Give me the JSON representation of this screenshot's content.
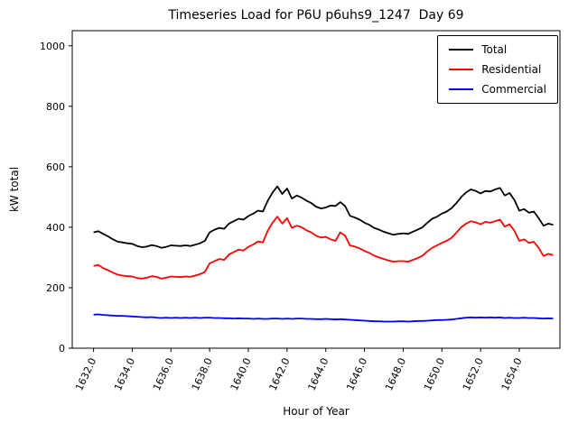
{
  "chart_data": {
    "type": "line",
    "title": "Timeseries Load for P6U p6uhs9_1247  Day 69",
    "xlabel": "Hour of Year",
    "ylabel": "kW total",
    "xlim": [
      1630.9,
      1656.1
    ],
    "ylim": [
      0,
      1050
    ],
    "yticks": [
      0,
      200,
      400,
      600,
      800,
      1000
    ],
    "xticks": [
      1632.0,
      1634.0,
      1636.0,
      1638.0,
      1640.0,
      1642.0,
      1644.0,
      1646.0,
      1648.0,
      1650.0,
      1652.0,
      1654.0
    ],
    "grid": false,
    "legend_position": "upper right",
    "x": [
      1632,
      1632.25,
      1632.5,
      1632.75,
      1633,
      1633.25,
      1633.5,
      1633.75,
      1634,
      1634.25,
      1634.5,
      1634.75,
      1635,
      1635.25,
      1635.5,
      1635.75,
      1636,
      1636.25,
      1636.5,
      1636.75,
      1637,
      1637.25,
      1637.5,
      1637.75,
      1638,
      1638.25,
      1638.5,
      1638.75,
      1639,
      1639.25,
      1639.5,
      1639.75,
      1640,
      1640.25,
      1640.5,
      1640.75,
      1641,
      1641.25,
      1641.5,
      1641.75,
      1642,
      1642.25,
      1642.5,
      1642.75,
      1643,
      1643.25,
      1643.5,
      1643.75,
      1644,
      1644.25,
      1644.5,
      1644.75,
      1645,
      1645.25,
      1645.5,
      1645.75,
      1646,
      1646.25,
      1646.5,
      1646.75,
      1647,
      1647.25,
      1647.5,
      1647.75,
      1648,
      1648.25,
      1648.5,
      1648.75,
      1649,
      1649.25,
      1649.5,
      1649.75,
      1650,
      1650.25,
      1650.5,
      1650.75,
      1651,
      1651.25,
      1651.5,
      1651.75,
      1652,
      1652.25,
      1652.5,
      1652.75,
      1653,
      1653.25,
      1653.5,
      1653.75,
      1654,
      1654.25,
      1654.5,
      1654.75,
      1655,
      1655.25,
      1655.5,
      1655.75
    ],
    "series": [
      {
        "name": "Total",
        "color": "#000000",
        "values": [
          383,
          387,
          378,
          370,
          360,
          352,
          350,
          347,
          345,
          338,
          334,
          336,
          341,
          338,
          332,
          335,
          340,
          339,
          338,
          340,
          338,
          342,
          347,
          355,
          383,
          392,
          398,
          395,
          412,
          420,
          428,
          425,
          437,
          445,
          455,
          452,
          487,
          515,
          535,
          510,
          528,
          495,
          505,
          498,
          488,
          480,
          468,
          462,
          465,
          472,
          470,
          483,
          470,
          438,
          432,
          425,
          415,
          408,
          398,
          392,
          385,
          380,
          375,
          378,
          380,
          378,
          385,
          392,
          400,
          415,
          428,
          435,
          445,
          452,
          463,
          480,
          500,
          515,
          525,
          520,
          512,
          520,
          518,
          525,
          530,
          505,
          513,
          490,
          455,
          460,
          448,
          452,
          430,
          405,
          412,
          408
        ]
      },
      {
        "name": "Residential",
        "color": "#ff0000",
        "values": [
          272,
          275,
          265,
          258,
          250,
          243,
          240,
          238,
          237,
          232,
          230,
          233,
          238,
          236,
          230,
          233,
          237,
          236,
          235,
          237,
          236,
          240,
          245,
          252,
          280,
          288,
          295,
          292,
          310,
          318,
          326,
          323,
          335,
          343,
          353,
          350,
          388,
          415,
          435,
          412,
          430,
          398,
          405,
          400,
          390,
          383,
          372,
          366,
          368,
          360,
          355,
          383,
          372,
          340,
          336,
          330,
          322,
          315,
          306,
          300,
          295,
          290,
          286,
          288,
          288,
          286,
          292,
          298,
          306,
          320,
          332,
          340,
          348,
          355,
          365,
          382,
          400,
          412,
          420,
          416,
          410,
          418,
          415,
          420,
          425,
          402,
          410,
          388,
          355,
          360,
          348,
          352,
          332,
          305,
          312,
          308
        ]
      },
      {
        "name": "Commercial",
        "color": "#0000ff",
        "values": [
          111,
          112,
          110,
          109,
          108,
          107,
          107,
          106,
          105,
          104,
          103,
          102,
          103,
          101,
          100,
          101,
          100,
          101,
          100,
          101,
          100,
          101,
          100,
          101,
          101,
          100,
          100,
          99,
          99,
          98,
          99,
          98,
          98,
          97,
          98,
          97,
          97,
          98,
          98,
          97,
          98,
          97,
          98,
          98,
          97,
          97,
          96,
          96,
          97,
          96,
          95,
          96,
          95,
          94,
          93,
          92,
          91,
          90,
          89,
          89,
          88,
          88,
          88,
          89,
          89,
          88,
          89,
          90,
          90,
          91,
          92,
          93,
          93,
          94,
          95,
          97,
          99,
          101,
          102,
          101,
          102,
          101,
          102,
          101,
          102,
          100,
          101,
          100,
          100,
          101,
          100,
          100,
          99,
          98,
          99,
          98
        ]
      }
    ]
  }
}
